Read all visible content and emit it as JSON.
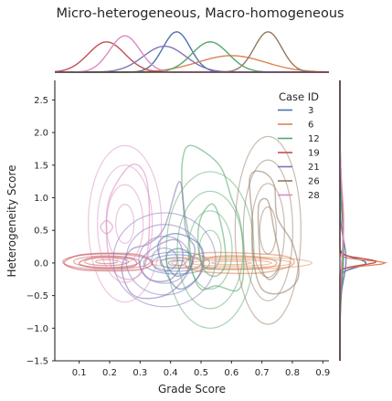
{
  "chart_data": {
    "type": "kde_joint",
    "title": "Micro-heterogeneous, Macro-homogeneous",
    "xlabel": "Grade Score",
    "ylabel": "Heterogeneity Score",
    "xlim": [
      0.02,
      0.92
    ],
    "ylim": [
      -1.5,
      2.8
    ],
    "xticks": [
      0.1,
      0.2,
      0.3,
      0.4,
      0.5,
      0.6,
      0.7,
      0.8,
      0.9
    ],
    "yticks": [
      -1.5,
      -1.0,
      -0.5,
      0.0,
      0.5,
      1.0,
      1.5,
      2.0,
      2.5
    ],
    "xtick_labels": [
      "0.1",
      "0.2",
      "0.3",
      "0.4",
      "0.5",
      "0.6",
      "0.7",
      "0.8",
      "0.9"
    ],
    "ytick_labels": [
      "−1.5",
      "−1.0",
      "−0.5",
      "0.0",
      "0.5",
      "1.0",
      "1.5",
      "2.0",
      "2.5"
    ],
    "grid": false,
    "legend": {
      "title": "Case ID",
      "position": "top-right"
    },
    "series": [
      {
        "name": "3",
        "color": "#4c72b0",
        "x_center": 0.42,
        "x_sd": 0.045,
        "y_center": 0.0,
        "y_sd": 0.07,
        "contours": [
          [
            [
              0.36,
              0.3
            ],
            [
              0.42,
              0.45
            ],
            [
              0.5,
              0.25
            ],
            [
              0.5,
              -0.15
            ],
            [
              0.43,
              -0.4
            ],
            [
              0.38,
              -0.1
            ]
          ],
          [
            [
              0.39,
              0.15
            ],
            [
              0.43,
              0.22
            ],
            [
              0.47,
              0.1
            ],
            [
              0.46,
              -0.12
            ],
            [
              0.42,
              -0.2
            ],
            [
              0.39,
              -0.05
            ]
          ]
        ]
      },
      {
        "name": "6",
        "color": "#dd8452",
        "x_center": 0.6,
        "x_sd": 0.11,
        "y_center": 0.0,
        "y_sd": 0.04,
        "contours": [
          [
            [
              0.45,
              0.0
            ],
            [
              0.5,
              0.15
            ],
            [
              0.65,
              0.15
            ],
            [
              0.78,
              0.1
            ],
            [
              0.8,
              -0.03
            ],
            [
              0.7,
              -0.15
            ],
            [
              0.55,
              -0.15
            ],
            [
              0.47,
              -0.1
            ]
          ],
          [
            [
              0.5,
              0.0
            ],
            [
              0.55,
              0.1
            ],
            [
              0.66,
              0.1
            ],
            [
              0.74,
              0.04
            ],
            [
              0.73,
              -0.06
            ],
            [
              0.6,
              -0.1
            ],
            [
              0.52,
              -0.07
            ]
          ]
        ]
      },
      {
        "name": "12",
        "color": "#55a868",
        "x_center": 0.53,
        "x_sd": 0.06,
        "y_center": 0.2,
        "y_sd": 0.5,
        "contours": [
          [
            [
              0.44,
              1.6
            ],
            [
              0.47,
              1.8
            ],
            [
              0.56,
              1.5
            ],
            [
              0.6,
              1.0
            ],
            [
              0.63,
              0.6
            ],
            [
              0.64,
              -0.1
            ],
            [
              0.62,
              -0.42
            ],
            [
              0.55,
              -0.35
            ],
            [
              0.5,
              -0.4
            ],
            [
              0.47,
              -0.1
            ],
            [
              0.46,
              0.4
            ],
            [
              0.44,
              1.0
            ]
          ],
          [
            [
              0.5,
              0.7
            ],
            [
              0.54,
              0.9
            ],
            [
              0.57,
              0.5
            ],
            [
              0.58,
              0.0
            ],
            [
              0.55,
              -0.2
            ],
            [
              0.51,
              -0.1
            ],
            [
              0.49,
              0.3
            ]
          ]
        ]
      },
      {
        "name": "19",
        "color": "#c44e52",
        "x_center": 0.19,
        "x_sd": 0.06,
        "y_center": 0.02,
        "y_sd": 0.05,
        "contours": [
          [
            [
              0.05,
              0.0
            ],
            [
              0.1,
              0.12
            ],
            [
              0.2,
              0.15
            ],
            [
              0.3,
              0.12
            ],
            [
              0.34,
              0.0
            ],
            [
              0.3,
              -0.1
            ],
            [
              0.2,
              -0.12
            ],
            [
              0.1,
              -0.1
            ]
          ],
          [
            [
              0.1,
              0.0
            ],
            [
              0.14,
              0.08
            ],
            [
              0.22,
              0.09
            ],
            [
              0.28,
              0.05
            ],
            [
              0.28,
              -0.05
            ],
            [
              0.2,
              -0.08
            ],
            [
              0.13,
              -0.06
            ]
          ]
        ]
      },
      {
        "name": "21",
        "color": "#8172b3",
        "x_center": 0.38,
        "x_sd": 0.07,
        "y_center": 0.05,
        "y_sd": 0.3,
        "contours": [
          [
            [
              0.24,
              -0.1
            ],
            [
              0.27,
              0.2
            ],
            [
              0.33,
              0.3
            ],
            [
              0.38,
              0.55
            ],
            [
              0.43,
              1.25
            ],
            [
              0.45,
              0.5
            ],
            [
              0.48,
              0.2
            ],
            [
              0.45,
              -0.2
            ],
            [
              0.38,
              -0.5
            ],
            [
              0.28,
              -0.5
            ]
          ],
          [
            [
              0.3,
              0.0
            ],
            [
              0.35,
              0.25
            ],
            [
              0.42,
              0.35
            ],
            [
              0.44,
              0.05
            ],
            [
              0.4,
              -0.25
            ],
            [
              0.33,
              -0.25
            ]
          ]
        ]
      },
      {
        "name": "26",
        "color": "#937860",
        "x_center": 0.72,
        "x_sd": 0.045,
        "y_center": 0.5,
        "y_sd": 0.6,
        "contours": [
          [
            [
              0.66,
              1.3
            ],
            [
              0.7,
              1.4
            ],
            [
              0.74,
              1.2
            ],
            [
              0.75,
              0.7
            ],
            [
              0.8,
              0.3
            ],
            [
              0.82,
              -0.2
            ],
            [
              0.77,
              -0.45
            ],
            [
              0.7,
              -0.4
            ],
            [
              0.67,
              0.1
            ],
            [
              0.67,
              0.6
            ]
          ],
          [
            [
              0.69,
              0.9
            ],
            [
              0.72,
              0.95
            ],
            [
              0.74,
              0.5
            ],
            [
              0.76,
              0.0
            ],
            [
              0.73,
              -0.25
            ],
            [
              0.7,
              -0.1
            ],
            [
              0.69,
              0.4
            ]
          ]
        ]
      },
      {
        "name": "28",
        "color": "#da8bc3",
        "x_center": 0.25,
        "x_sd": 0.05,
        "y_center": 0.6,
        "y_sd": 0.5,
        "contours": [
          [
            [
              0.2,
              1.0
            ],
            [
              0.27,
              1.5
            ],
            [
              0.32,
              1.3
            ],
            [
              0.33,
              0.5
            ],
            [
              0.31,
              -0.1
            ],
            [
              0.26,
              -0.25
            ],
            [
              0.21,
              -0.1
            ],
            [
              0.19,
              0.4
            ]
          ],
          [
            [
              0.17,
              0.55
            ],
            [
              0.19,
              0.65
            ],
            [
              0.21,
              0.55
            ],
            [
              0.19,
              0.45
            ]
          ]
        ]
      }
    ]
  }
}
